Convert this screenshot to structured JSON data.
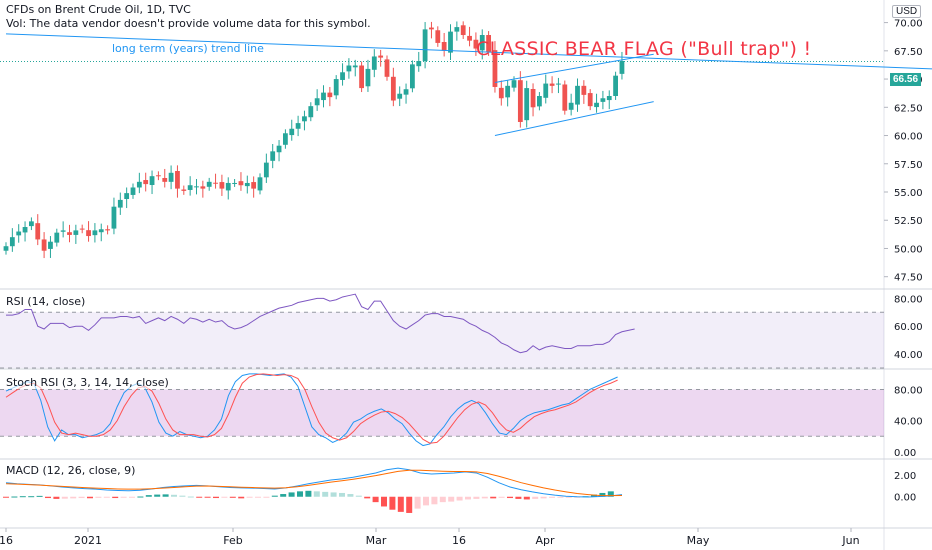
{
  "header": {
    "symbol_line": "CFDs on Brent Crude Oil, 1D, TVC",
    "volume_note": "Vol: The data vendor doesn't provide volume data for this symbol.",
    "currency": "USD",
    "last_price": "66.56"
  },
  "annotations": {
    "trend_line_label": "long term (years) trend line",
    "headline": "CLASSIC BEAR FLAG (\"Bull trap\") !"
  },
  "colors": {
    "up": "#26a69a",
    "down": "#ef5350",
    "line": "#2196f3",
    "rsi": "#7e57c2",
    "stoch_k": "#2196f3",
    "stoch_d": "#ff5252",
    "macd": "#2196f3",
    "signal": "#ff6d00"
  },
  "chart_data": [
    {
      "type": "candlestick",
      "title": "CFDs on Brent Crude Oil, 1D, TVC",
      "x_tick_labels": [
        "16",
        "2021",
        "Feb",
        "Mar",
        "16",
        "Apr",
        "May",
        "Jun"
      ],
      "y_ticks": [
        47.5,
        50.0,
        52.5,
        55.0,
        57.5,
        60.0,
        62.5,
        65.0,
        67.5,
        70.0
      ],
      "y_tick_labels": [
        "47.50",
        "50.00",
        "52.50",
        "55.00",
        "57.50",
        "60.00",
        "62.50",
        "65.00",
        "67.50",
        "70.00"
      ],
      "ylim": [
        46.5,
        72
      ],
      "last_value": 66.56,
      "series": [
        {
          "name": "price_closes",
          "values": [
            50.2,
            51.0,
            51.5,
            51.9,
            52.4,
            50.8,
            49.8,
            50.6,
            51.4,
            51.6,
            51.2,
            51.6,
            51.7,
            51.1,
            51.6,
            51.7,
            51.6,
            53.7,
            54.3,
            54.9,
            55.4,
            55.9,
            55.7,
            56.4,
            56.4,
            55.9,
            56.7,
            55.3,
            55.1,
            55.6,
            55.5,
            55.3,
            55.9,
            55.8,
            55.3,
            55.8,
            55.8,
            55.6,
            55.8,
            55.3,
            56.3,
            57.6,
            58.6,
            59.1,
            60.2,
            60.6,
            61.1,
            61.7,
            62.6,
            63.3,
            63.8,
            63.4,
            65.0,
            65.6,
            66.2,
            66.2,
            64.2,
            65.9,
            67.0,
            66.9,
            65.2,
            63.1,
            63.7,
            64.1,
            66.3,
            66.6,
            69.4,
            69.4,
            68.2,
            67.5,
            69.2,
            69.6,
            68.9,
            68.4,
            67.7,
            68.9,
            67.4,
            64.3,
            63.3,
            64.4,
            64.9,
            61.2,
            64.2,
            62.5,
            63.5,
            64.6,
            64.4,
            64.6,
            62.2,
            62.9,
            64.4,
            63.6,
            62.6,
            62.9,
            63.3,
            63.5,
            65.3,
            66.6
          ]
        }
      ],
      "overlays": [
        {
          "name": "long term (years) trend line",
          "from": [
            0,
            69.0
          ],
          "to": [
            146,
            65.9
          ]
        },
        {
          "name": "flag upper",
          "from": [
            77,
            64.7
          ],
          "to": [
            102,
            67.2
          ]
        },
        {
          "name": "flag lower",
          "from": [
            77,
            60.0
          ],
          "to": [
            102,
            63.0
          ]
        }
      ]
    },
    {
      "type": "line",
      "title": "RSI (14, close)",
      "y_tick_labels": [
        "80.00",
        "60.00",
        "40.00"
      ],
      "ylim": [
        30,
        86
      ],
      "bands": [
        30,
        70
      ],
      "series": [
        {
          "name": "RSI",
          "values": [
            68,
            68,
            69,
            72,
            72,
            60,
            58,
            62,
            62,
            62,
            59,
            60,
            60,
            57,
            61,
            66,
            66,
            66,
            67,
            67,
            66,
            67,
            62,
            64,
            66,
            64,
            67,
            65,
            62,
            66,
            65,
            63,
            65,
            63,
            64,
            60,
            58,
            59,
            61,
            64,
            67,
            69,
            71,
            73,
            74,
            75,
            77,
            78,
            79,
            80,
            80,
            78,
            79,
            81,
            82,
            83,
            74,
            72,
            78,
            78,
            71,
            64,
            60,
            58,
            61,
            64,
            68,
            69,
            69,
            67,
            67,
            66,
            65,
            62,
            60,
            57,
            55,
            52,
            48,
            46,
            43,
            41,
            42,
            46,
            43,
            45,
            46,
            45,
            44,
            44,
            46,
            46,
            46,
            47,
            47,
            49,
            54,
            56,
            57,
            58
          ]
        }
      ]
    },
    {
      "type": "line",
      "title": "Stoch RSI (3, 3, 14, 14, close)",
      "y_tick_labels": [
        "80.00",
        "40.00",
        "0.00"
      ],
      "ylim": [
        -8,
        105
      ],
      "bands": [
        20,
        80
      ],
      "series": [
        {
          "name": "K",
          "values": [
            78,
            82,
            86,
            90,
            88,
            66,
            32,
            14,
            28,
            22,
            22,
            18,
            20,
            22,
            26,
            36,
            58,
            76,
            84,
            88,
            82,
            64,
            38,
            24,
            20,
            26,
            22,
            20,
            18,
            20,
            28,
            42,
            72,
            90,
            98,
            100,
            100,
            99,
            98,
            99,
            100,
            96,
            84,
            58,
            32,
            22,
            18,
            12,
            16,
            24,
            38,
            42,
            48,
            52,
            55,
            50,
            42,
            36,
            24,
            14,
            8,
            10,
            22,
            32,
            45,
            55,
            62,
            66,
            62,
            50,
            36,
            24,
            22,
            30,
            40,
            46,
            50,
            52,
            54,
            57,
            60,
            62,
            68,
            74,
            80,
            84,
            88,
            92,
            96
          ]
        },
        {
          "name": "D",
          "values": [
            70,
            76,
            82,
            86,
            88,
            82,
            62,
            38,
            24,
            22,
            24,
            22,
            20,
            20,
            22,
            28,
            40,
            58,
            72,
            82,
            84,
            78,
            62,
            42,
            28,
            22,
            22,
            22,
            20,
            19,
            22,
            30,
            48,
            70,
            88,
            96,
            99,
            100,
            99,
            98,
            99,
            98,
            94,
            80,
            58,
            38,
            24,
            18,
            15,
            18,
            26,
            36,
            42,
            47,
            51,
            52,
            49,
            44,
            36,
            26,
            16,
            11,
            12,
            20,
            32,
            44,
            54,
            61,
            64,
            60,
            50,
            37,
            28,
            25,
            30,
            38,
            45,
            49,
            52,
            54,
            57,
            60,
            64,
            70,
            76,
            81,
            85,
            88,
            92
          ]
        }
      ]
    },
    {
      "type": "bar",
      "title": "MACD (12, 26, close, 9)",
      "y_tick_labels": [
        "2.00",
        "0.00"
      ],
      "ylim": [
        -2.8,
        3.4
      ],
      "series": [
        {
          "name": "histogram",
          "values": [
            -0.05,
            0.02,
            0.05,
            0.05,
            0.08,
            -0.12,
            -0.2,
            -0.18,
            -0.15,
            -0.12,
            -0.14,
            -0.1,
            -0.08,
            -0.12,
            -0.08,
            -0.04,
            0.02,
            0.15,
            0.2,
            0.22,
            0.18,
            0.1,
            0.02,
            -0.05,
            -0.08,
            -0.12,
            -0.06,
            -0.1,
            -0.15,
            -0.08,
            -0.05,
            -0.02,
            0.1,
            0.25,
            0.4,
            0.5,
            0.55,
            0.5,
            0.45,
            0.4,
            0.35,
            0.25,
            0.1,
            -0.15,
            -0.5,
            -0.9,
            -1.2,
            -1.4,
            -1.5,
            -1.1,
            -0.8,
            -0.7,
            -0.5,
            -0.45,
            -0.35,
            -0.25,
            -0.2,
            -0.15,
            -0.15,
            -0.1,
            -0.12,
            -0.2,
            -0.25,
            -0.2,
            -0.15,
            -0.1,
            -0.08,
            -0.05,
            -0.03,
            0.05,
            0.2,
            0.35,
            0.5
          ]
        },
        {
          "name": "MACD",
          "values": [
            1.3,
            1.2,
            1.15,
            1.1,
            1.0,
            0.9,
            0.82,
            0.75,
            0.7,
            0.62,
            0.58,
            0.55,
            0.6,
            0.72,
            0.85,
            0.95,
            1.0,
            1.05,
            1.0,
            0.92,
            0.86,
            0.82,
            0.8,
            0.76,
            0.72,
            0.82,
            1.0,
            1.2,
            1.38,
            1.55,
            1.65,
            1.8,
            2.0,
            2.2,
            2.5,
            2.65,
            2.5,
            2.2,
            2.1,
            2.15,
            2.2,
            2.3,
            2.2,
            1.8,
            1.3,
            0.9,
            0.65,
            0.45,
            0.28,
            0.15,
            0.05,
            0.0,
            -0.02,
            0.02,
            0.08,
            0.2
          ]
        },
        {
          "name": "Signal",
          "values": [
            1.2,
            1.17,
            1.12,
            1.07,
            1.02,
            0.96,
            0.9,
            0.84,
            0.8,
            0.76,
            0.72,
            0.7,
            0.7,
            0.74,
            0.8,
            0.86,
            0.92,
            0.98,
            0.99,
            0.96,
            0.92,
            0.88,
            0.85,
            0.82,
            0.8,
            0.83,
            0.92,
            1.05,
            1.2,
            1.35,
            1.48,
            1.62,
            1.78,
            1.95,
            2.15,
            2.35,
            2.45,
            2.45,
            2.4,
            2.36,
            2.34,
            2.34,
            2.3,
            2.15,
            1.9,
            1.6,
            1.3,
            1.05,
            0.82,
            0.62,
            0.45,
            0.3,
            0.2,
            0.12,
            0.1,
            0.12
          ]
        }
      ]
    }
  ]
}
